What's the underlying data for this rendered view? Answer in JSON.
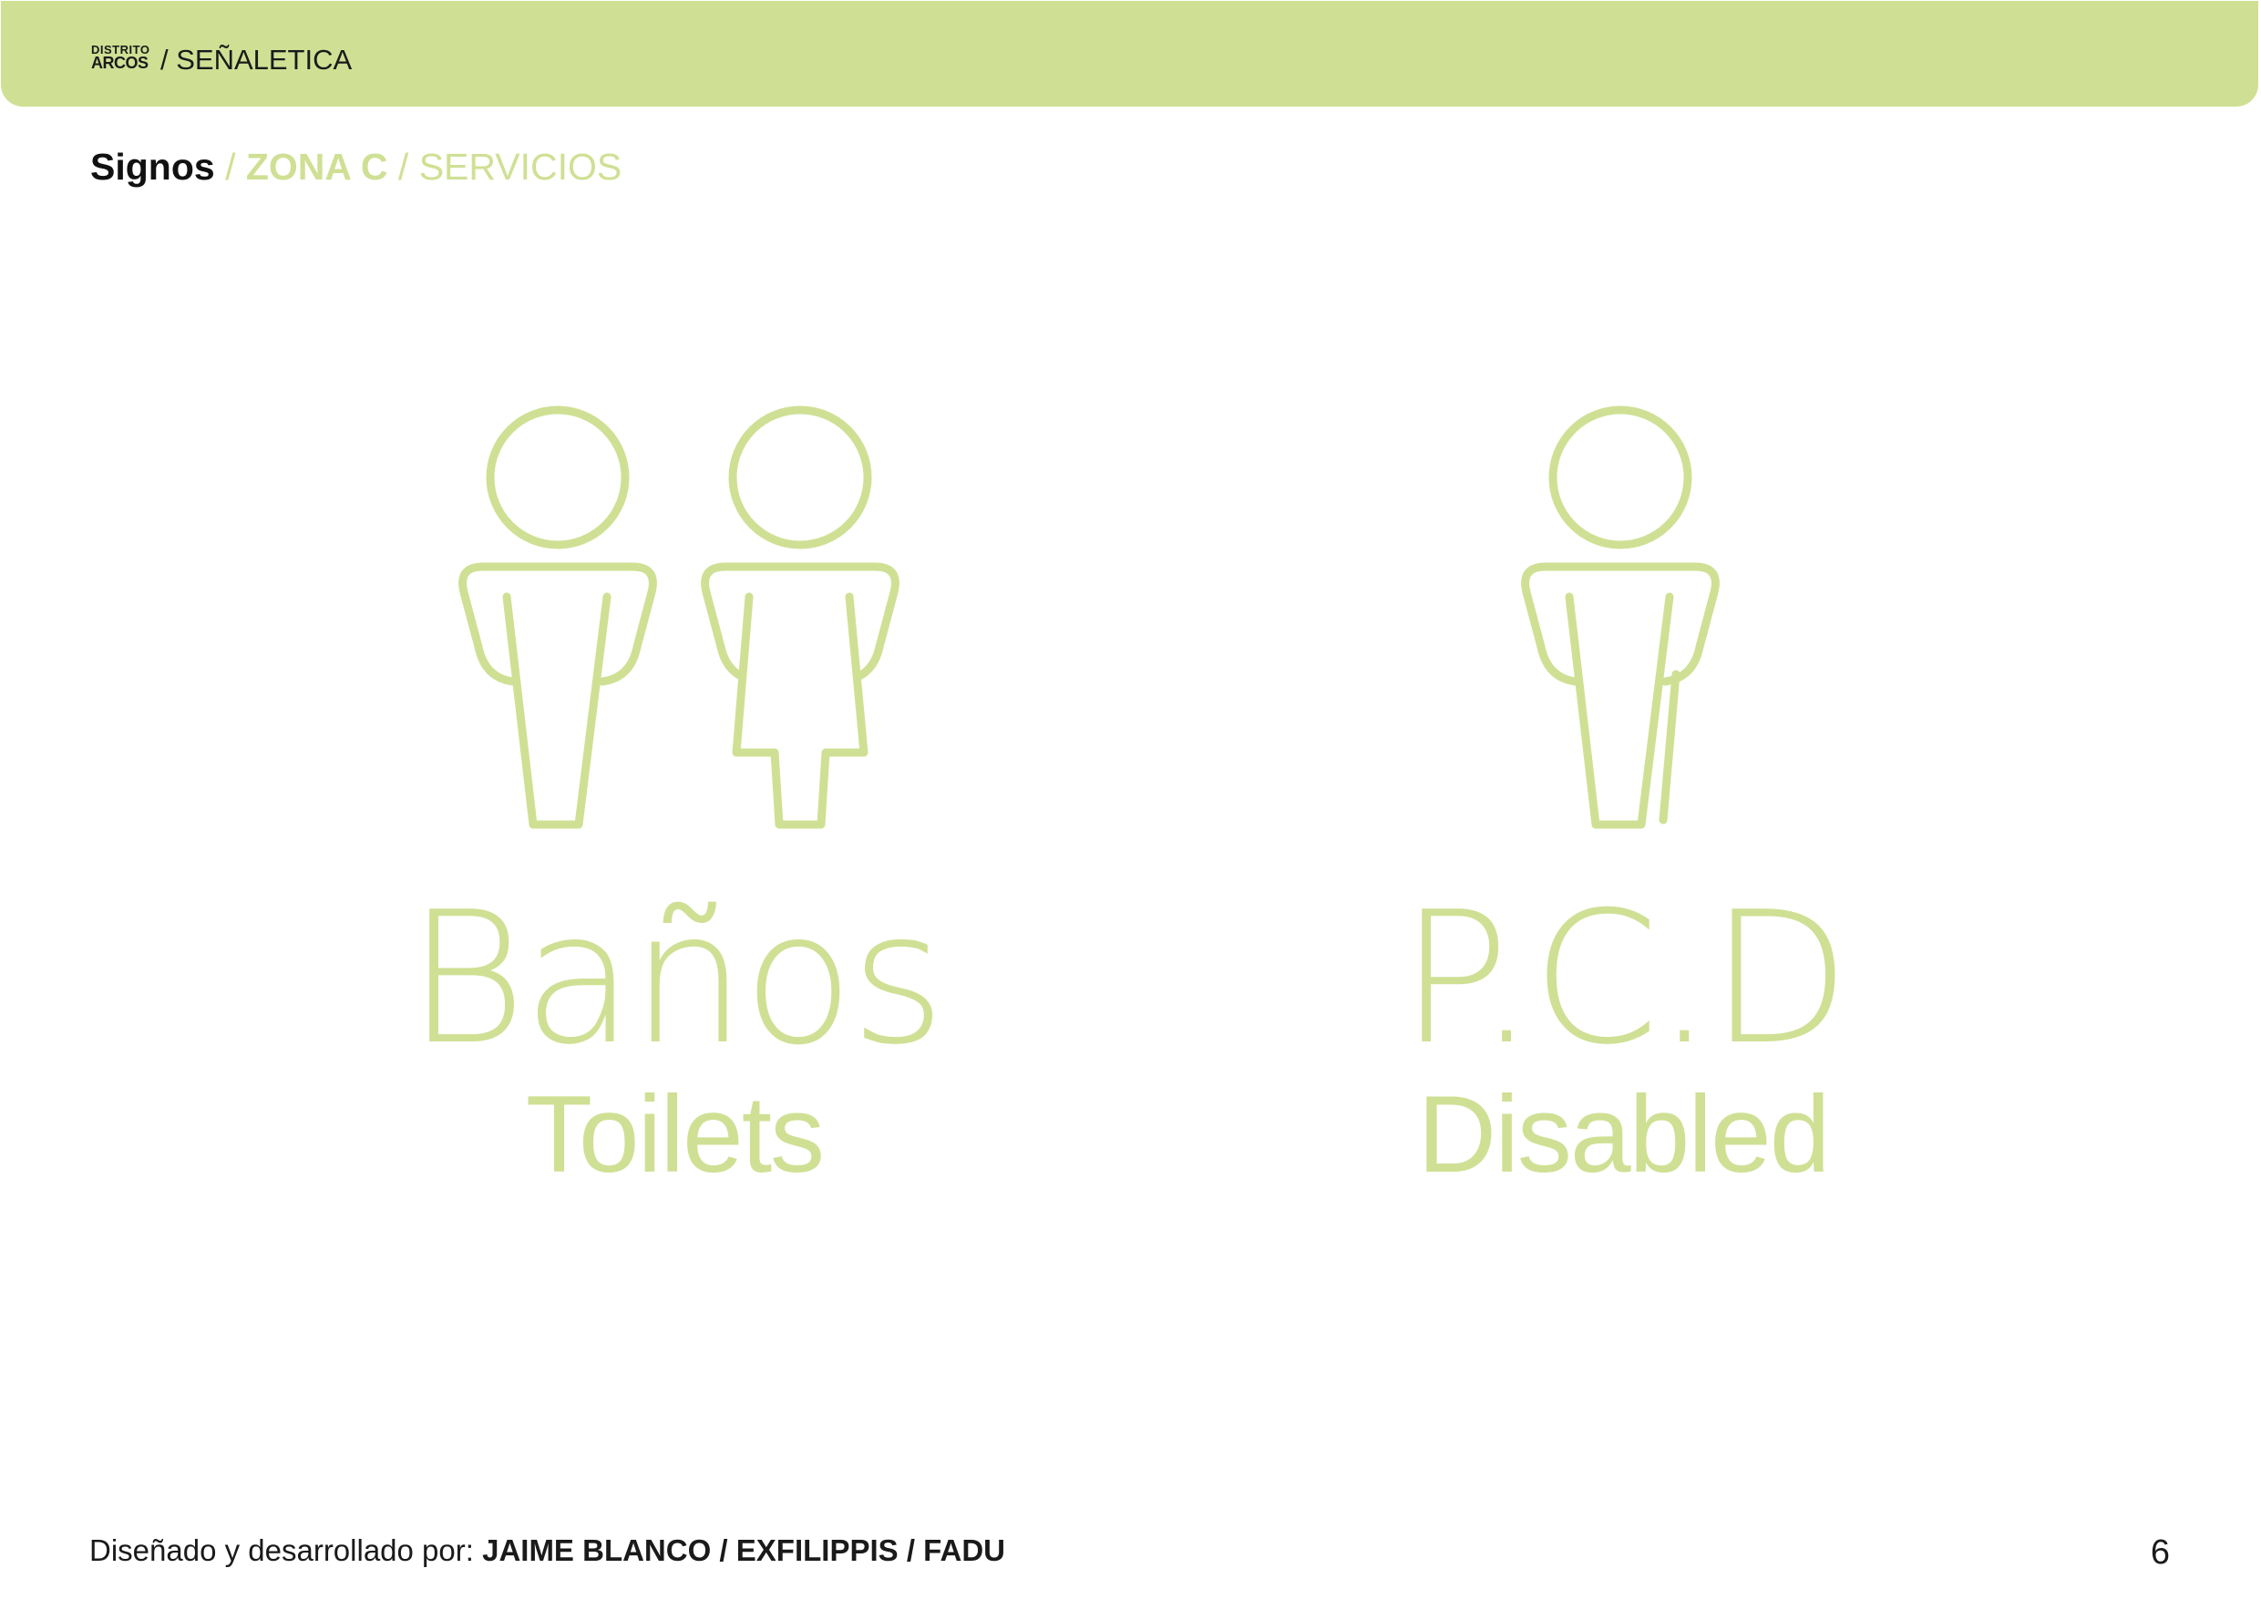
{
  "header": {
    "logo_line1": "DISTRITO",
    "logo_line2": "ARCOS",
    "title": "/ SEÑALETICA"
  },
  "breadcrumb": {
    "level1": "Signos",
    "sep1": " / ",
    "level2": "ZONA C",
    "sep2": " / ",
    "level3": "SERVICIOS"
  },
  "signs": [
    {
      "title": "Baños",
      "subtitle": "Toilets",
      "icon": "restroom-man-woman-icon"
    },
    {
      "title": "P.C.D",
      "subtitle": "Disabled",
      "icon": "accessibility-cane-icon"
    }
  ],
  "footer": {
    "credit_prefix": "Diseñado y desarrollado por: ",
    "credit_names": "JAIME BLANCO / EXFILIPPIS / FADU",
    "page_number": "6"
  },
  "colors": {
    "accent": "#cfe094",
    "text": "#1a1a1a"
  }
}
